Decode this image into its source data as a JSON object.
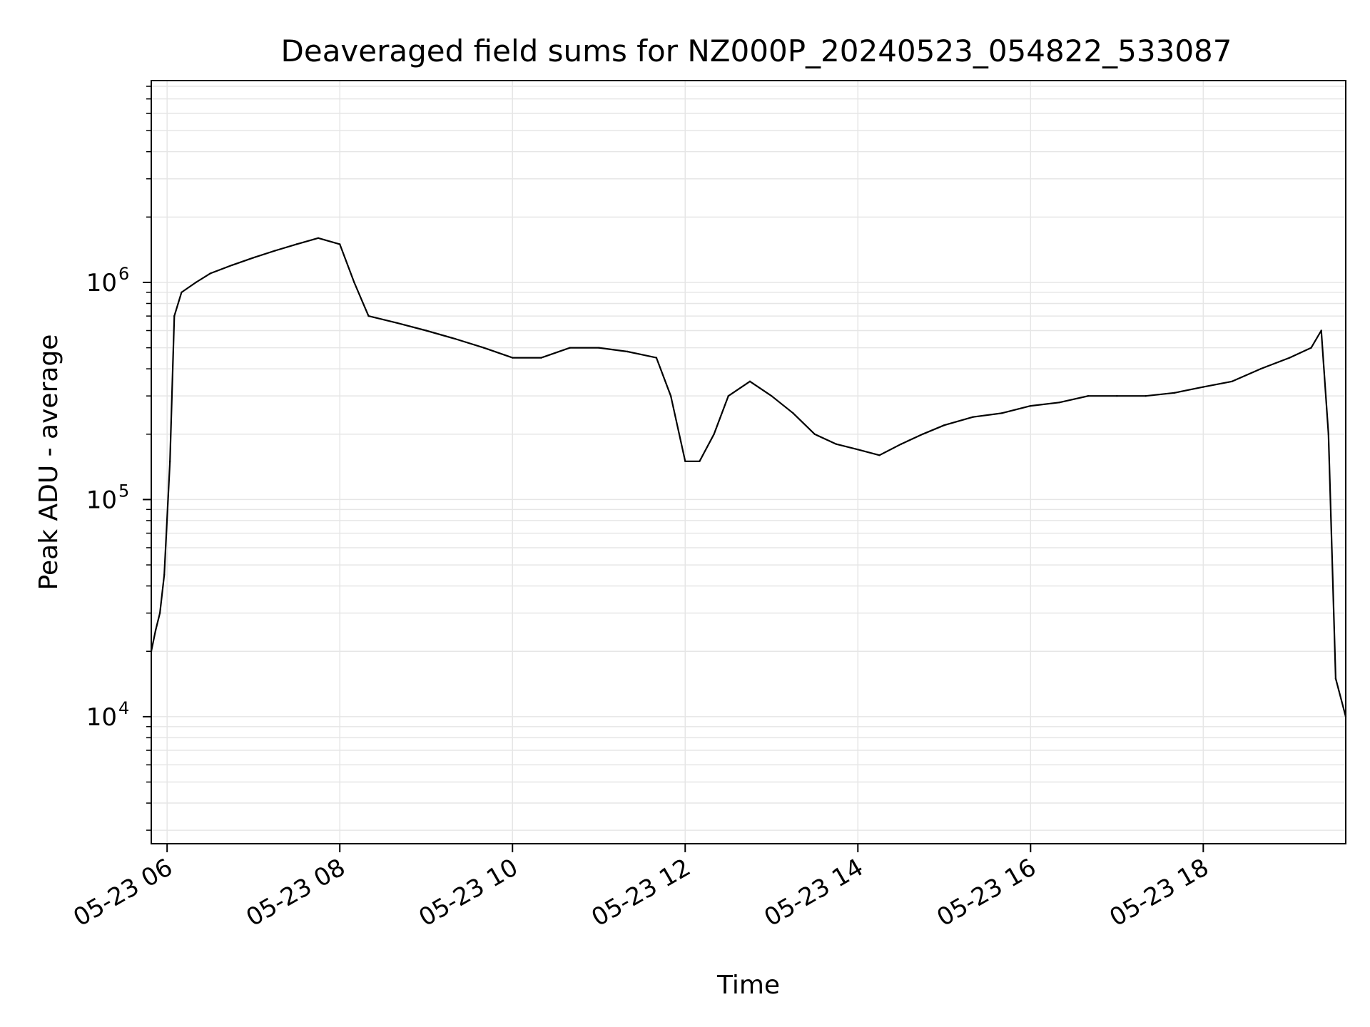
{
  "chart_data": {
    "type": "line",
    "title": "Deaveraged field sums for NZ000P_20240523_054822_533087",
    "xlabel": "Time",
    "ylabel": "Peak ADU - average",
    "yscale": "log",
    "ylim": [
      2600,
      8500000
    ],
    "xlim": [
      "2024-05-23 05:49",
      "2024-05-23 19:39"
    ],
    "grid": true,
    "line_color": "#000000",
    "grid_color": "#e6e6e6",
    "x_ticks": [
      {
        "label": "05-23 06",
        "time": "2024-05-23 06:00"
      },
      {
        "label": "05-23 08",
        "time": "2024-05-23 08:00"
      },
      {
        "label": "05-23 10",
        "time": "2024-05-23 10:00"
      },
      {
        "label": "05-23 12",
        "time": "2024-05-23 12:00"
      },
      {
        "label": "05-23 14",
        "time": "2024-05-23 14:00"
      },
      {
        "label": "05-23 16",
        "time": "2024-05-23 16:00"
      },
      {
        "label": "05-23 18",
        "time": "2024-05-23 18:00"
      }
    ],
    "y_ticks": [
      {
        "base": "10",
        "exp": "4",
        "value": 10000
      },
      {
        "base": "10",
        "exp": "5",
        "value": 100000
      },
      {
        "base": "10",
        "exp": "6",
        "value": 1000000
      }
    ],
    "series": [
      {
        "x": [
          "2024-05-23 05:49",
          "2024-05-23 05:52",
          "2024-05-23 05:55",
          "2024-05-23 05:58",
          "2024-05-23 06:02",
          "2024-05-23 06:05",
          "2024-05-23 06:10",
          "2024-05-23 06:20",
          "2024-05-23 06:30",
          "2024-05-23 06:45",
          "2024-05-23 07:00",
          "2024-05-23 07:15",
          "2024-05-23 07:30",
          "2024-05-23 07:45",
          "2024-05-23 08:00",
          "2024-05-23 08:10",
          "2024-05-23 08:20",
          "2024-05-23 08:40",
          "2024-05-23 09:00",
          "2024-05-23 09:20",
          "2024-05-23 09:40",
          "2024-05-23 10:00",
          "2024-05-23 10:20",
          "2024-05-23 10:40",
          "2024-05-23 11:00",
          "2024-05-23 11:20",
          "2024-05-23 11:40",
          "2024-05-23 11:50",
          "2024-05-23 12:00",
          "2024-05-23 12:10",
          "2024-05-23 12:20",
          "2024-05-23 12:30",
          "2024-05-23 12:45",
          "2024-05-23 13:00",
          "2024-05-23 13:15",
          "2024-05-23 13:30",
          "2024-05-23 13:45",
          "2024-05-23 14:00",
          "2024-05-23 14:15",
          "2024-05-23 14:30",
          "2024-05-23 14:45",
          "2024-05-23 15:00",
          "2024-05-23 15:20",
          "2024-05-23 15:40",
          "2024-05-23 16:00",
          "2024-05-23 16:20",
          "2024-05-23 16:40",
          "2024-05-23 17:00",
          "2024-05-23 17:20",
          "2024-05-23 17:40",
          "2024-05-23 18:00",
          "2024-05-23 18:20",
          "2024-05-23 18:40",
          "2024-05-23 19:00",
          "2024-05-23 19:15",
          "2024-05-23 19:22",
          "2024-05-23 19:27",
          "2024-05-23 19:32",
          "2024-05-23 19:39"
        ],
        "values": [
          20000,
          25000,
          30000,
          45000,
          150000,
          700000,
          900000,
          1000000,
          1100000,
          1200000,
          1300000,
          1400000,
          1500000,
          1600000,
          1500000,
          1000000,
          700000,
          650000,
          600000,
          550000,
          500000,
          450000,
          450000,
          500000,
          500000,
          480000,
          450000,
          300000,
          150000,
          150000,
          200000,
          300000,
          350000,
          300000,
          250000,
          200000,
          180000,
          170000,
          160000,
          180000,
          200000,
          220000,
          240000,
          250000,
          270000,
          280000,
          300000,
          300000,
          300000,
          310000,
          330000,
          350000,
          400000,
          450000,
          500000,
          600000,
          200000,
          15000,
          10000
        ]
      }
    ]
  }
}
